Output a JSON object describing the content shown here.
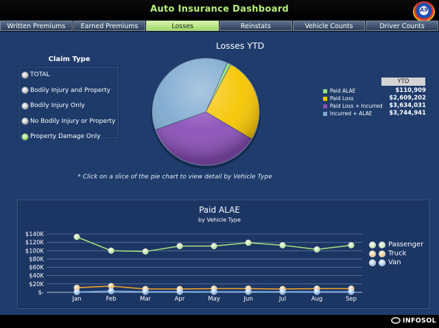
{
  "app": {
    "title": "Auto Insurance Dashboard",
    "logo_text": "A9"
  },
  "tabs": [
    "Written Premiums",
    "Earned Premiums",
    "Losses",
    "Reinstats",
    "Vehicle Counts",
    "Driver Counts"
  ],
  "active_tab": 2,
  "claim_type": {
    "title": "Claim Type",
    "options": [
      "TOTAL",
      "Bodily Injury and Property",
      "Bodily Injury Only",
      "No Bodily Injury or Property",
      "Property Damage Only"
    ],
    "selected": 4
  },
  "colors": {
    "accent_green": "#b8f07a",
    "background": "#1f3c6c"
  },
  "chart_data": [
    {
      "type": "pie",
      "title": "Losses YTD",
      "note": "* Click on a slice of the pie chart to view detail by Vehicle Type",
      "legend_header": "YTD",
      "slices": [
        {
          "name": "Paid ALAE",
          "value": 110909,
          "display": "$110,909",
          "color": "#8ee07a"
        },
        {
          "name": "Paid Loss",
          "value": 2609202,
          "display": "$2,609,202",
          "color": "#f6c500"
        },
        {
          "name": "Paid Loss + Incurred",
          "value": 3634031,
          "display": "$3,634,031",
          "color": "#8a4fb8"
        },
        {
          "name": "Incurred + ALAE",
          "value": 3744941,
          "display": "$3,744,941",
          "color": "#7ea9cf"
        }
      ]
    },
    {
      "type": "line",
      "title": "Paid ALAE",
      "subtitle": "by Vehicle Type",
      "categories": [
        "Jan",
        "Feb",
        "Mar",
        "Apr",
        "May",
        "Jun",
        "Jul",
        "Aug",
        "Sep"
      ],
      "y_ticks": [
        "$-",
        "$20K",
        "$40K",
        "$60K",
        "$80K",
        "$100K",
        "$120K",
        "$140K"
      ],
      "ylim": [
        0,
        140000
      ],
      "series": [
        {
          "name": "Passenger",
          "color": "#a6e07a",
          "values": [
            133000,
            100000,
            98000,
            111000,
            111000,
            119000,
            113000,
            103000,
            113000
          ]
        },
        {
          "name": "Truck",
          "color": "#f3a22b",
          "values": [
            11000,
            15000,
            8000,
            8000,
            9000,
            9000,
            8000,
            9000,
            9000
          ]
        },
        {
          "name": "Van",
          "color": "#6fa8e6",
          "values": [
            1000,
            3000,
            1500,
            1500,
            1500,
            1500,
            1500,
            1500,
            1500
          ]
        }
      ]
    }
  ],
  "footer": {
    "brand": "INFOSOL"
  }
}
